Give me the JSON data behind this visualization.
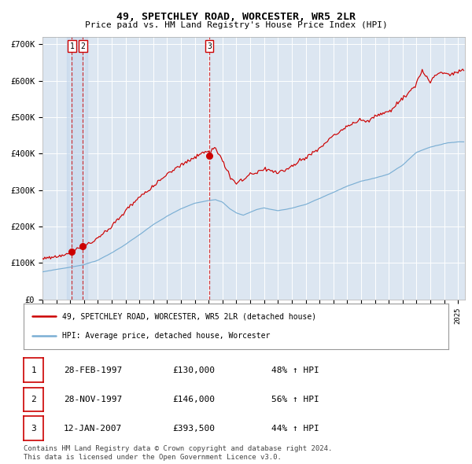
{
  "title": "49, SPETCHLEY ROAD, WORCESTER, WR5 2LR",
  "subtitle": "Price paid vs. HM Land Registry's House Price Index (HPI)",
  "ylim": [
    0,
    720000
  ],
  "yticks": [
    0,
    100000,
    200000,
    300000,
    400000,
    500000,
    600000,
    700000
  ],
  "ytick_labels": [
    "£0",
    "£100K",
    "£200K",
    "£300K",
    "£400K",
    "£500K",
    "£600K",
    "£700K"
  ],
  "background_color": "#dce6f1",
  "red_line_color": "#cc0000",
  "blue_line_color": "#7bafd4",
  "grid_color": "#ffffff",
  "vline_color": "#cc0000",
  "purchase_dates": [
    1997.12,
    1997.92,
    2007.04
  ],
  "purchase_prices": [
    130000,
    146000,
    393500
  ],
  "purchase_labels": [
    "1",
    "2",
    "3"
  ],
  "legend_entries": [
    "49, SPETCHLEY ROAD, WORCESTER, WR5 2LR (detached house)",
    "HPI: Average price, detached house, Worcester"
  ],
  "table_rows": [
    {
      "num": "1",
      "date": "28-FEB-1997",
      "price": "£130,000",
      "hpi": "48% ↑ HPI"
    },
    {
      "num": "2",
      "date": "28-NOV-1997",
      "price": "£146,000",
      "hpi": "56% ↑ HPI"
    },
    {
      "num": "3",
      "date": "12-JAN-2007",
      "price": "£393,500",
      "hpi": "44% ↑ HPI"
    }
  ],
  "footnote1": "Contains HM Land Registry data © Crown copyright and database right 2024.",
  "footnote2": "This data is licensed under the Open Government Licence v3.0.",
  "xmin": 1995.0,
  "xmax": 2025.5
}
